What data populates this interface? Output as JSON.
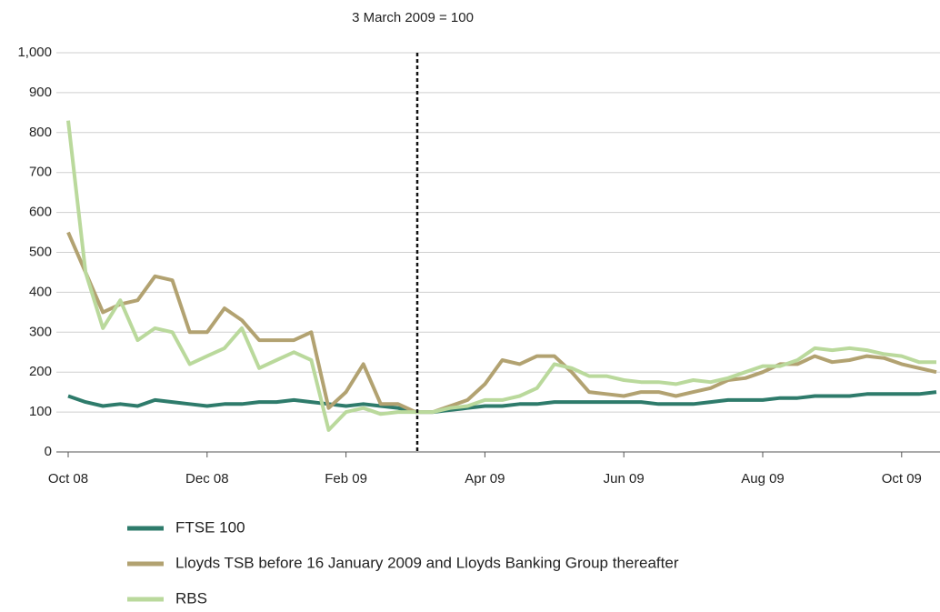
{
  "chart_data": {
    "type": "line",
    "annotation": "3 March 2009 = 100",
    "categories": [
      "Oct 08",
      null,
      null,
      null,
      null,
      null,
      null,
      null,
      "Dec 08",
      null,
      null,
      null,
      null,
      null,
      null,
      null,
      "Feb 09",
      null,
      null,
      null,
      null,
      null,
      null,
      null,
      "Apr 09",
      null,
      null,
      null,
      null,
      null,
      null,
      null,
      "Jun 09",
      null,
      null,
      null,
      null,
      null,
      null,
      null,
      "Aug 09",
      null,
      null,
      null,
      null,
      null,
      null,
      null,
      "Oct 09",
      null,
      null
    ],
    "series": [
      {
        "name": "FTSE 100",
        "color": "#2e7b6b",
        "values": [
          140,
          125,
          115,
          120,
          115,
          130,
          125,
          120,
          115,
          120,
          120,
          125,
          125,
          130,
          125,
          120,
          115,
          120,
          115,
          110,
          100,
          100,
          105,
          110,
          115,
          115,
          120,
          120,
          125,
          125,
          125,
          125,
          125,
          125,
          120,
          120,
          120,
          125,
          130,
          130,
          130,
          135,
          135,
          140,
          140,
          140,
          145,
          145,
          145,
          145,
          150
        ]
      },
      {
        "name": "Lloyds TSB before 16 January 2009 and Lloyds Banking Group thereafter",
        "color": "#b2a271",
        "values": [
          550,
          450,
          350,
          370,
          380,
          440,
          430,
          300,
          300,
          360,
          330,
          280,
          280,
          280,
          300,
          110,
          150,
          220,
          120,
          120,
          100,
          100,
          115,
          130,
          170,
          230,
          220,
          240,
          240,
          200,
          150,
          145,
          140,
          150,
          150,
          140,
          150,
          160,
          180,
          185,
          200,
          220,
          220,
          240,
          225,
          230,
          240,
          235,
          220,
          210,
          200
        ]
      },
      {
        "name": "RBS",
        "color": "#bad99c",
        "values": [
          830,
          450,
          310,
          380,
          280,
          310,
          300,
          220,
          240,
          260,
          310,
          210,
          230,
          250,
          230,
          55,
          100,
          110,
          95,
          100,
          100,
          100,
          110,
          115,
          130,
          130,
          140,
          160,
          220,
          210,
          190,
          190,
          180,
          175,
          175,
          170,
          180,
          175,
          185,
          200,
          215,
          215,
          230,
          260,
          255,
          260,
          255,
          245,
          240,
          225,
          225
        ]
      }
    ],
    "ylim": [
      0,
      1000
    ],
    "yticks": [
      0,
      100,
      200,
      300,
      400,
      500,
      600,
      700,
      800,
      900,
      {
        "value": 1000,
        "label": "1,000"
      }
    ],
    "grid": true
  }
}
